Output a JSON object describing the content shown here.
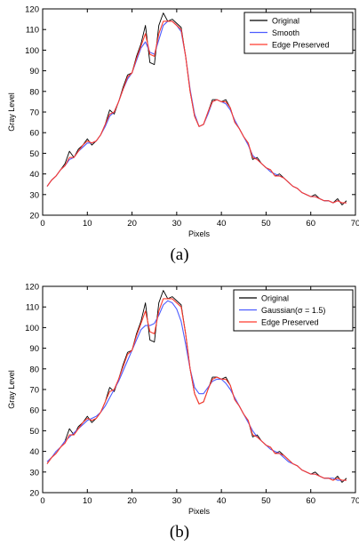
{
  "colors": {
    "original": "#000000",
    "smooth": "#4d5cff",
    "edge": "#ff3b2e",
    "axis": "#000000",
    "background": "#ffffff"
  },
  "chart_data": [
    {
      "type": "line",
      "caption": "(a)",
      "xlabel": "Pixels",
      "ylabel": "Gray Level",
      "xlim": [
        0,
        70
      ],
      "ylim": [
        20,
        120
      ],
      "xticks": [
        0,
        10,
        20,
        30,
        40,
        50,
        60,
        70
      ],
      "yticks": [
        20,
        30,
        40,
        50,
        60,
        70,
        80,
        90,
        100,
        110,
        120
      ],
      "grid": false,
      "legend_position": "top-right",
      "x": [
        1,
        2,
        3,
        4,
        5,
        6,
        7,
        8,
        9,
        10,
        11,
        12,
        13,
        14,
        15,
        16,
        17,
        18,
        19,
        20,
        21,
        22,
        23,
        24,
        25,
        26,
        27,
        28,
        29,
        30,
        31,
        32,
        33,
        34,
        35,
        36,
        37,
        38,
        39,
        40,
        41,
        42,
        43,
        44,
        45,
        46,
        47,
        48,
        49,
        50,
        51,
        52,
        53,
        54,
        55,
        56,
        57,
        58,
        59,
        60,
        61,
        62,
        63,
        64,
        65,
        66,
        67,
        68
      ],
      "series": [
        {
          "name": "Original",
          "color_key": "original",
          "values": [
            34,
            37,
            39,
            42,
            45,
            51,
            48,
            52,
            54,
            57,
            54,
            56,
            59,
            64,
            71,
            69,
            75,
            82,
            88,
            89,
            97,
            103,
            112,
            94,
            93,
            112,
            118,
            114,
            115,
            113,
            111,
            97,
            80,
            68,
            63,
            64,
            70,
            76,
            76,
            75,
            76,
            72,
            65,
            62,
            58,
            55,
            47,
            48,
            45,
            43,
            42,
            39,
            40,
            38,
            36,
            34,
            33,
            31,
            30,
            29,
            30,
            28,
            27,
            27,
            26,
            28,
            25,
            27
          ]
        },
        {
          "name": "Smooth",
          "color_key": "smooth",
          "values": [
            34,
            37,
            39,
            42,
            44,
            47,
            48,
            51,
            53,
            55,
            55,
            56,
            59,
            63,
            68,
            70,
            75,
            81,
            86,
            89,
            95,
            101,
            104,
            99,
            98,
            105,
            112,
            114,
            114,
            112,
            109,
            97,
            81,
            69,
            63,
            64,
            69,
            75,
            76,
            75,
            74,
            71,
            66,
            62,
            58,
            54,
            49,
            47,
            45,
            43,
            41,
            40,
            39,
            38,
            36,
            34,
            33,
            31,
            30,
            29,
            29,
            28,
            27,
            27,
            26,
            27,
            26,
            26
          ]
        },
        {
          "name": "Edge Preserved",
          "color_key": "edge",
          "values": [
            34,
            37,
            39,
            42,
            44,
            48,
            48,
            51,
            54,
            56,
            55,
            56,
            59,
            64,
            69,
            70,
            75,
            81,
            87,
            89,
            96,
            102,
            108,
            98,
            97,
            108,
            114,
            114,
            114,
            112,
            110,
            97,
            80,
            68,
            63,
            64,
            70,
            75,
            76,
            75,
            75,
            72,
            65,
            62,
            58,
            55,
            48,
            47,
            45,
            43,
            42,
            39,
            39,
            38,
            36,
            34,
            33,
            31,
            30,
            29,
            29,
            28,
            27,
            27,
            26,
            27,
            26,
            26
          ]
        }
      ]
    },
    {
      "type": "line",
      "caption": "(b)",
      "xlabel": "Pixels",
      "ylabel": "Gray Level",
      "xlim": [
        0,
        70
      ],
      "ylim": [
        20,
        120
      ],
      "xticks": [
        0,
        10,
        20,
        30,
        40,
        50,
        60,
        70
      ],
      "yticks": [
        20,
        30,
        40,
        50,
        60,
        70,
        80,
        90,
        100,
        110,
        120
      ],
      "grid": false,
      "legend_position": "top-right",
      "x": [
        1,
        2,
        3,
        4,
        5,
        6,
        7,
        8,
        9,
        10,
        11,
        12,
        13,
        14,
        15,
        16,
        17,
        18,
        19,
        20,
        21,
        22,
        23,
        24,
        25,
        26,
        27,
        28,
        29,
        30,
        31,
        32,
        33,
        34,
        35,
        36,
        37,
        38,
        39,
        40,
        41,
        42,
        43,
        44,
        45,
        46,
        47,
        48,
        49,
        50,
        51,
        52,
        53,
        54,
        55,
        56,
        57,
        58,
        59,
        60,
        61,
        62,
        63,
        64,
        65,
        66,
        67,
        68
      ],
      "series": [
        {
          "name": "Original",
          "color_key": "original",
          "values": [
            34,
            37,
            39,
            42,
            45,
            51,
            48,
            52,
            54,
            57,
            54,
            56,
            59,
            64,
            71,
            69,
            75,
            82,
            88,
            89,
            97,
            103,
            112,
            94,
            93,
            112,
            118,
            114,
            115,
            113,
            111,
            97,
            80,
            68,
            63,
            64,
            70,
            76,
            76,
            75,
            76,
            72,
            65,
            62,
            58,
            55,
            47,
            48,
            45,
            43,
            42,
            39,
            40,
            38,
            36,
            34,
            33,
            31,
            30,
            29,
            30,
            28,
            27,
            27,
            26,
            28,
            25,
            27
          ]
        },
        {
          "name": "Gaussian(σ = 1.5)",
          "color_key": "smooth",
          "values": [
            35,
            37,
            40,
            42,
            45,
            47,
            49,
            51,
            53,
            55,
            56,
            57,
            59,
            62,
            66,
            70,
            74,
            79,
            84,
            89,
            94,
            99,
            101,
            101,
            102,
            106,
            111,
            113,
            112,
            109,
            103,
            92,
            80,
            71,
            68,
            68,
            71,
            74,
            75,
            75,
            73,
            70,
            66,
            62,
            58,
            54,
            50,
            47,
            45,
            43,
            41,
            40,
            39,
            37,
            35,
            34,
            33,
            31,
            30,
            29,
            29,
            28,
            27,
            27,
            27,
            26,
            26,
            26
          ]
        },
        {
          "name": "Edge Preserved",
          "color_key": "edge",
          "values": [
            34,
            37,
            39,
            42,
            44,
            48,
            48,
            51,
            54,
            56,
            55,
            56,
            59,
            64,
            69,
            70,
            75,
            81,
            87,
            89,
            96,
            102,
            108,
            98,
            97,
            108,
            114,
            114,
            114,
            112,
            110,
            97,
            80,
            68,
            63,
            64,
            70,
            75,
            76,
            75,
            75,
            72,
            65,
            62,
            58,
            55,
            48,
            47,
            45,
            43,
            42,
            39,
            39,
            38,
            36,
            34,
            33,
            31,
            30,
            29,
            29,
            28,
            27,
            27,
            26,
            27,
            26,
            26
          ]
        }
      ]
    }
  ]
}
